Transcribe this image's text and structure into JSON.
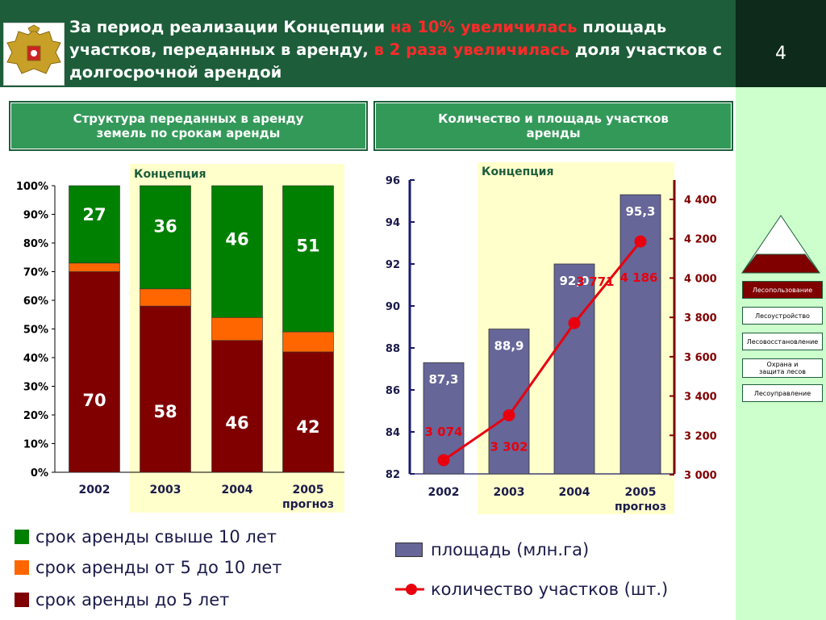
{
  "header": {
    "title_parts": [
      {
        "text": "За период реализации Концепции ",
        "hl": false
      },
      {
        "text": "на 10% увеличилась",
        "hl": true
      },
      {
        "text": " площадь участков, переданных в аренду, ",
        "hl": false
      },
      {
        "text": "в 2 раза увеличилась",
        "hl": true
      },
      {
        "text": " доля участков с долгосрочной арендой",
        "hl": false
      }
    ],
    "page_number": "4"
  },
  "colors": {
    "header_green": "#1d5d3a",
    "highlight_red": "#ff2a2a",
    "bar_green": "#008000",
    "bar_orange": "#ff6600",
    "bar_darkred": "#800000",
    "bar_purple": "#666699",
    "line_red": "#e8000e",
    "concept_band": "#ffffcc"
  },
  "sidebar": {
    "items": [
      "Лесопользование",
      "Лесоустройство",
      "Лесовосстановление",
      "Охрана и защита лесов",
      "Лесоуправление"
    ],
    "active_index": 0
  },
  "left_panel": {
    "heading_lines": [
      "Структура переданных в аренду",
      "земель по срокам аренды"
    ],
    "concept_label": "Концепция"
  },
  "right_panel": {
    "heading_lines": [
      "Количество и площадь участков",
      "аренды"
    ],
    "concept_label": "Концепция"
  },
  "legend_left": [
    {
      "label": "срок аренды свыше 10 лет",
      "color": "#008000"
    },
    {
      "label": "срок аренды от 5 до 10 лет",
      "color": "#ff6600"
    },
    {
      "label": "срок аренды до 5 лет",
      "color": "#800000"
    }
  ],
  "legend_right": [
    {
      "label": "площадь (млн.га)",
      "kind": "bar"
    },
    {
      "label": "количество участков (шт.)",
      "kind": "line"
    }
  ],
  "chart_data": [
    {
      "type": "bar",
      "stacked": true,
      "title": "Структура переданных в аренду земель по срокам аренды",
      "categories": [
        [
          "2002"
        ],
        [
          "2003"
        ],
        [
          "2004"
        ],
        [
          "2005",
          "прогноз"
        ]
      ],
      "series": [
        {
          "name": "срок аренды до 5 лет",
          "values": [
            70,
            58,
            46,
            42
          ],
          "labels": [
            "70",
            "58",
            "46",
            "42"
          ]
        },
        {
          "name": "срок аренды от 5 до 10 лет",
          "values": [
            3,
            6,
            8,
            7
          ]
        },
        {
          "name": "срок аренды свыше 10 лет",
          "values": [
            27,
            36,
            46,
            51
          ],
          "labels": [
            "27",
            "36",
            "46",
            "51"
          ]
        }
      ],
      "yticks": [
        "0%",
        "10%",
        "20%",
        "30%",
        "40%",
        "50%",
        "60%",
        "70%",
        "80%",
        "90%",
        "100%"
      ],
      "ylim": [
        0,
        100
      ],
      "concept_range": [
        "2003",
        "2005"
      ]
    },
    {
      "type": "bar+line",
      "title": "Количество и площадь участков аренды",
      "categories": [
        [
          "2002"
        ],
        [
          "2003"
        ],
        [
          "2004"
        ],
        [
          "2005",
          "прогноз"
        ]
      ],
      "bars": {
        "name": "площадь (млн.га)",
        "values": [
          87.3,
          88.9,
          92.0,
          95.3
        ],
        "labels": [
          "87,3",
          "88,9",
          "92,0",
          "95,3"
        ]
      },
      "line": {
        "name": "количество участков (шт.)",
        "values": [
          3074,
          3302,
          3771,
          4186
        ],
        "labels": [
          "3 074",
          "3 302",
          "3 771",
          "4 186"
        ]
      },
      "y_left": {
        "ylim": [
          82,
          96
        ],
        "ticks": [
          "82",
          "84",
          "86",
          "88",
          "90",
          "92",
          "94",
          "96"
        ]
      },
      "y_right": {
        "ylim": [
          3000,
          4500
        ],
        "ticks": [
          "3 000",
          "3 200",
          "3 400",
          "3 600",
          "3 800",
          "4 000",
          "4 200",
          "4 400"
        ]
      },
      "concept_range": [
        "2003",
        "2005"
      ]
    }
  ]
}
